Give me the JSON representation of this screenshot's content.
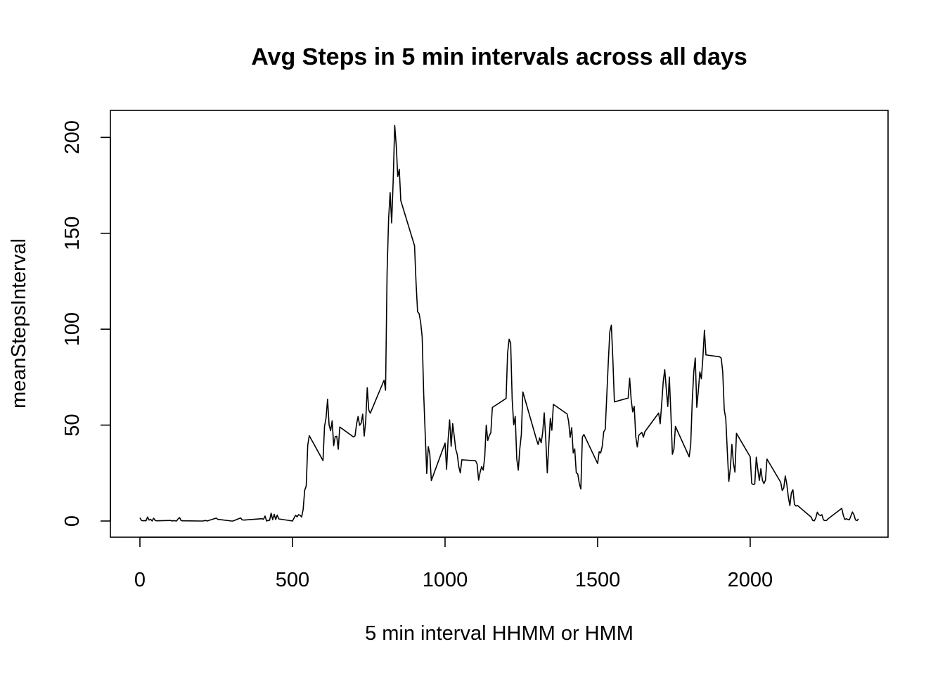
{
  "chart_data": {
    "type": "line",
    "title": "Avg Steps in 5 min intervals across all days",
    "xlabel": "5 min interval HHMM or HMM",
    "ylabel": "meanStepsInterval",
    "xlim": [
      0,
      2355
    ],
    "ylim": [
      0,
      206
    ],
    "x_ticks": [
      0,
      500,
      1000,
      1500,
      2000
    ],
    "y_ticks": [
      0,
      50,
      100,
      150,
      200
    ],
    "x_tick_labels": [
      "0",
      "500",
      "1000",
      "1500",
      "2000"
    ],
    "y_tick_labels": [
      "0",
      "50",
      "100",
      "150",
      "200"
    ],
    "grid": false,
    "legend": "none",
    "line_color": "#000000",
    "series": [
      {
        "x": [
          0,
          5,
          10,
          15,
          20,
          25,
          30,
          35,
          40,
          45,
          50,
          55,
          100,
          105,
          110,
          120,
          125,
          130,
          135,
          140,
          200,
          205,
          210,
          215,
          220,
          250,
          255,
          300,
          305,
          330,
          335,
          340,
          400,
          405,
          410,
          415,
          420,
          425,
          430,
          435,
          440,
          445,
          450,
          455,
          500,
          505,
          510,
          515,
          520,
          525,
          530,
          535,
          540,
          545,
          550,
          555,
          600,
          605,
          610,
          615,
          620,
          625,
          630,
          635,
          640,
          645,
          650,
          655,
          700,
          705,
          710,
          715,
          720,
          725,
          730,
          735,
          740,
          745,
          750,
          755,
          800,
          805,
          810,
          815,
          820,
          825,
          830,
          835,
          840,
          845,
          850,
          855,
          900,
          905,
          910,
          915,
          920,
          925,
          930,
          935,
          940,
          945,
          950,
          955,
          1000,
          1005,
          1010,
          1015,
          1020,
          1025,
          1030,
          1035,
          1040,
          1045,
          1050,
          1055,
          1100,
          1105,
          1110,
          1115,
          1120,
          1125,
          1130,
          1135,
          1140,
          1145,
          1150,
          1155,
          1200,
          1205,
          1210,
          1215,
          1220,
          1225,
          1230,
          1235,
          1240,
          1245,
          1250,
          1255,
          1300,
          1305,
          1310,
          1315,
          1320,
          1325,
          1330,
          1335,
          1340,
          1345,
          1350,
          1355,
          1400,
          1405,
          1410,
          1415,
          1420,
          1425,
          1430,
          1435,
          1440,
          1445,
          1450,
          1455,
          1500,
          1505,
          1510,
          1515,
          1520,
          1525,
          1530,
          1535,
          1540,
          1545,
          1550,
          1555,
          1600,
          1605,
          1610,
          1615,
          1620,
          1625,
          1630,
          1635,
          1640,
          1645,
          1650,
          1655,
          1700,
          1705,
          1710,
          1715,
          1720,
          1725,
          1730,
          1735,
          1740,
          1745,
          1750,
          1755,
          1800,
          1805,
          1810,
          1815,
          1820,
          1825,
          1830,
          1835,
          1840,
          1845,
          1850,
          1855,
          1900,
          1905,
          1910,
          1915,
          1920,
          1925,
          1930,
          1935,
          1940,
          1945,
          1950,
          1955,
          2000,
          2005,
          2010,
          2015,
          2020,
          2025,
          2030,
          2035,
          2040,
          2045,
          2050,
          2055,
          2100,
          2105,
          2110,
          2115,
          2120,
          2125,
          2130,
          2135,
          2140,
          2145,
          2150,
          2155,
          2200,
          2205,
          2210,
          2215,
          2220,
          2225,
          2230,
          2235,
          2240,
          2245,
          2250,
          2255,
          2300,
          2305,
          2310,
          2315,
          2320,
          2325,
          2330,
          2335,
          2340,
          2345,
          2350,
          2355
        ],
        "values": [
          1.7,
          0.3,
          0.1,
          0.2,
          0.1,
          2.1,
          0.5,
          0.9,
          0.0,
          1.5,
          0.3,
          0.1,
          0.3,
          0.0,
          0.2,
          0.0,
          1.1,
          1.8,
          0.2,
          0.1,
          0.0,
          0.0,
          0.1,
          0.3,
          0.0,
          1.5,
          0.9,
          0.0,
          0.0,
          1.6,
          0.6,
          0.5,
          1.2,
          0.9,
          2.6,
          0.0,
          0.3,
          0.4,
          4.1,
          0.7,
          3.5,
          0.8,
          3.1,
          1.1,
          0.0,
          1.5,
          3.0,
          2.2,
          3.3,
          3.0,
          2.1,
          6.1,
          16.0,
          18.3,
          39.5,
          44.5,
          31.5,
          49.3,
          53.8,
          63.5,
          50.0,
          47.1,
          52.2,
          39.3,
          44.0,
          44.2,
          37.4,
          49.0,
          43.8,
          44.4,
          50.5,
          54.5,
          49.9,
          51.0,
          55.7,
          44.3,
          52.3,
          69.5,
          57.8,
          56.2,
          73.4,
          68.2,
          129.4,
          157.5,
          171.2,
          155.4,
          177.3,
          206.2,
          195.9,
          179.6,
          183.4,
          167.0,
          143.5,
          124.0,
          109.1,
          108.1,
          103.7,
          95.9,
          66.2,
          45.2,
          24.8,
          38.8,
          34.9,
          21.1,
          40.6,
          27.0,
          42.4,
          52.7,
          38.9,
          50.8,
          44.3,
          37.4,
          34.7,
          28.3,
          25.1,
          31.9,
          31.4,
          29.7,
          21.3,
          25.5,
          28.4,
          26.5,
          33.4,
          50.0,
          42.0,
          44.6,
          46.0,
          59.2,
          63.9,
          87.6,
          94.8,
          92.8,
          63.4,
          50.2,
          54.5,
          32.4,
          26.5,
          37.7,
          45.1,
          67.3,
          42.3,
          39.9,
          43.3,
          40.8,
          46.2,
          56.4,
          42.8,
          25.1,
          39.9,
          53.5,
          47.3,
          60.8,
          55.8,
          51.9,
          43.6,
          48.7,
          35.5,
          37.6,
          25.2,
          24.5,
          19.5,
          16.7,
          43.8,
          45.1,
          30.0,
          36.1,
          35.5,
          38.8,
          46.5,
          47.8,
          65.3,
          82.9,
          98.7,
          102.1,
          84.0,
          62.1,
          64.1,
          74.5,
          63.2,
          56.9,
          59.8,
          43.9,
          38.6,
          44.7,
          45.5,
          46.2,
          43.7,
          46.6,
          56.3,
          50.7,
          61.2,
          72.7,
          78.9,
          68.9,
          59.7,
          75.1,
          56.5,
          34.8,
          37.5,
          49.3,
          33.5,
          39.7,
          62.1,
          77.7,
          85.0,
          59.3,
          67.8,
          77.7,
          74.2,
          85.3,
          99.5,
          86.6,
          85.6,
          84.9,
          77.8,
          58.0,
          53.4,
          36.3,
          20.7,
          27.4,
          40.0,
          30.2,
          25.5,
          45.7,
          33.5,
          19.6,
          19.0,
          19.3,
          33.3,
          26.8,
          21.2,
          27.3,
          21.3,
          19.5,
          21.3,
          32.3,
          20.2,
          15.9,
          17.2,
          23.5,
          19.2,
          12.5,
          8.0,
          14.7,
          16.3,
          8.7,
          7.8,
          8.1,
          2.0,
          0.3,
          0.1,
          1.6,
          4.6,
          3.3,
          2.8,
          3.3,
          0.6,
          0.2,
          0.3,
          1.1,
          6.6,
          3.1,
          0.8,
          1.2,
          0.8,
          0.6,
          2.6,
          4.7,
          3.3,
          0.6,
          0.2,
          1.1
        ]
      }
    ]
  }
}
